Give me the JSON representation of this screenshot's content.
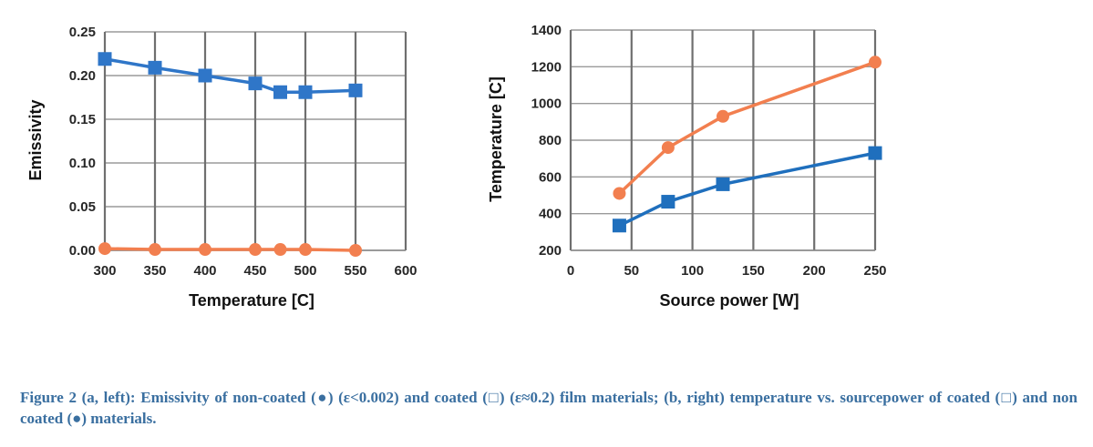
{
  "chart_data": [
    {
      "type": "line",
      "xlabel": "Temperature [C]",
      "ylabel": "Emissivity",
      "xlim": [
        300,
        600
      ],
      "ylim": [
        0,
        0.25
      ],
      "xticks": [
        "300",
        "350",
        "400",
        "450",
        "500",
        "550",
        "600"
      ],
      "yticks": [
        "0.00",
        "0.05",
        "0.10",
        "0.15",
        "0.20",
        "0.25"
      ],
      "grid": true,
      "series": [
        {
          "marker": "square",
          "color": "#2f76c8",
          "x": [
            300,
            350,
            400,
            450,
            475,
            500,
            550
          ],
          "y": [
            0.219,
            0.209,
            0.2,
            0.191,
            0.181,
            0.181,
            0.183
          ]
        },
        {
          "marker": "circle",
          "color": "#f27f4f",
          "x": [
            300,
            350,
            400,
            450,
            475,
            500,
            550
          ],
          "y": [
            0.002,
            0.001,
            0.001,
            0.001,
            0.001,
            0.001,
            0.0
          ]
        }
      ]
    },
    {
      "type": "line",
      "xlabel": "Source power [W]",
      "ylabel": "Temperature [C]",
      "xlim": [
        0,
        250
      ],
      "ylim": [
        200,
        1400
      ],
      "xticks": [
        "0",
        "50",
        "100",
        "150",
        "200",
        "250"
      ],
      "yticks": [
        "200",
        "400",
        "600",
        "800",
        "1000",
        "1200",
        "1400"
      ],
      "grid": true,
      "series": [
        {
          "marker": "circle",
          "color": "#f27f4f",
          "x": [
            40,
            80,
            125,
            250
          ],
          "y": [
            510,
            760,
            930,
            1225
          ]
        },
        {
          "marker": "square",
          "color": "#1f6fbd",
          "x": [
            40,
            80,
            125,
            250
          ],
          "y": [
            335,
            465,
            560,
            730
          ]
        }
      ]
    }
  ],
  "caption": "Figure 2 (a, left): Emissivity of non-coated (●) (ε<0.002) and coated (□) (ε≈0.2) film materials; (b, right) temperature vs. sourcepower of coated (□) and non coated (●) materials."
}
